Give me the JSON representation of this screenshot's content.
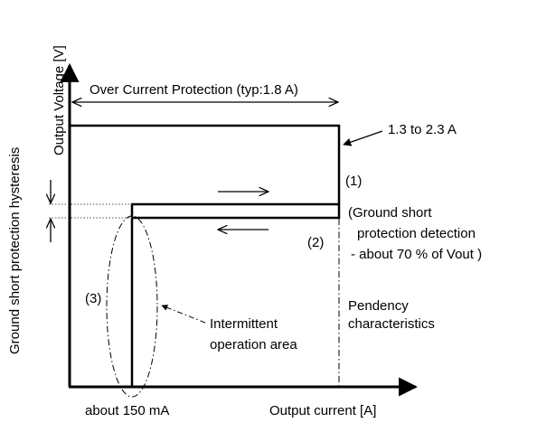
{
  "axes": {
    "y_label": "Output Voltage [V]",
    "x_label": "Output current [A]"
  },
  "labels": {
    "ocp": "Over Current Protection (typ:1.8 A)",
    "range": "1.3 to 2.3 A",
    "mark1": "(1)",
    "mark2": "(2)",
    "mark3": "(3)",
    "gsd_line1": "(Ground short",
    "gsd_line2": "protection detection",
    "gsd_line3": "- about 70 % of Vout )",
    "hysteresis": "Ground short protection hysteresis",
    "pendency_line1": "Pendency",
    "pendency_line2": "characteristics",
    "intermittent_line1": "Intermittent",
    "intermittent_line2": "operation area",
    "about150": "about 150 mA"
  }
}
